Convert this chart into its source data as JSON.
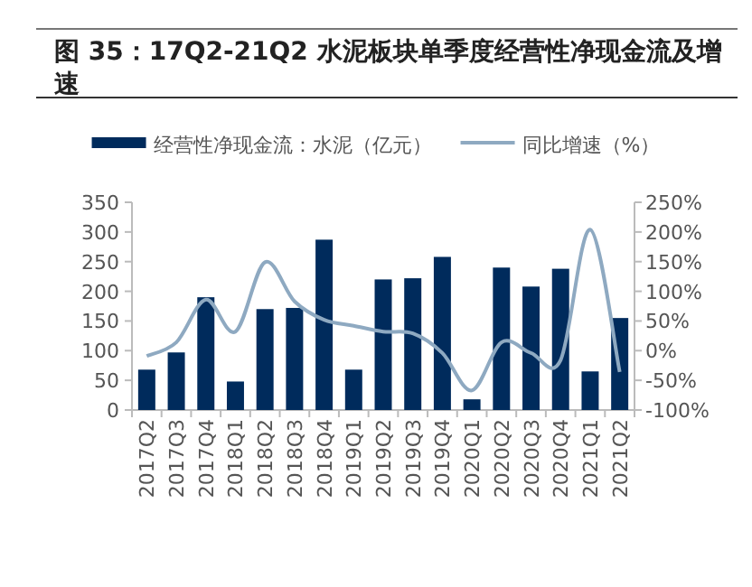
{
  "chart_data": {
    "type": "bar",
    "title": "图 35：17Q2-21Q2 水泥板块单季度经营性净现金流及增速",
    "categories": [
      "2017Q2",
      "2017Q3",
      "2017Q4",
      "2018Q1",
      "2018Q2",
      "2018Q3",
      "2018Q4",
      "2019Q1",
      "2019Q2",
      "2019Q3",
      "2019Q4",
      "2020Q1",
      "2020Q2",
      "2020Q3",
      "2020Q4",
      "2021Q1",
      "2021Q2"
    ],
    "series": [
      {
        "name": "经营性净现金流：水泥（亿元）",
        "color": "#002b5c",
        "values": [
          68,
          97,
          190,
          48,
          170,
          172,
          287,
          68,
          220,
          222,
          258,
          18,
          240,
          208,
          238,
          65,
          155
        ]
      },
      {
        "name": "同比增速（%）",
        "type": "line",
        "axis": "y2",
        "color": "#8ea9c1",
        "values": [
          -9,
          14,
          86,
          32,
          149,
          83,
          52,
          42,
          32,
          29,
          -4,
          -67,
          14,
          -4,
          -16,
          204,
          -36
        ]
      }
    ],
    "ylim": [
      0,
      350
    ],
    "yticks": [
      0,
      50,
      100,
      150,
      200,
      250,
      300,
      350
    ],
    "y2lim": [
      -100,
      250
    ],
    "y2ticks": [
      {
        "value": -100,
        "label": "-100%"
      },
      {
        "value": -50,
        "label": "-50%"
      },
      {
        "value": 0,
        "label": "0%"
      },
      {
        "value": 50,
        "label": "50%"
      },
      {
        "value": 100,
        "label": "100%"
      },
      {
        "value": 150,
        "label": "150%"
      },
      {
        "value": 200,
        "label": "200%"
      },
      {
        "value": 250,
        "label": "250%"
      }
    ],
    "legend": "top",
    "grid": false
  }
}
